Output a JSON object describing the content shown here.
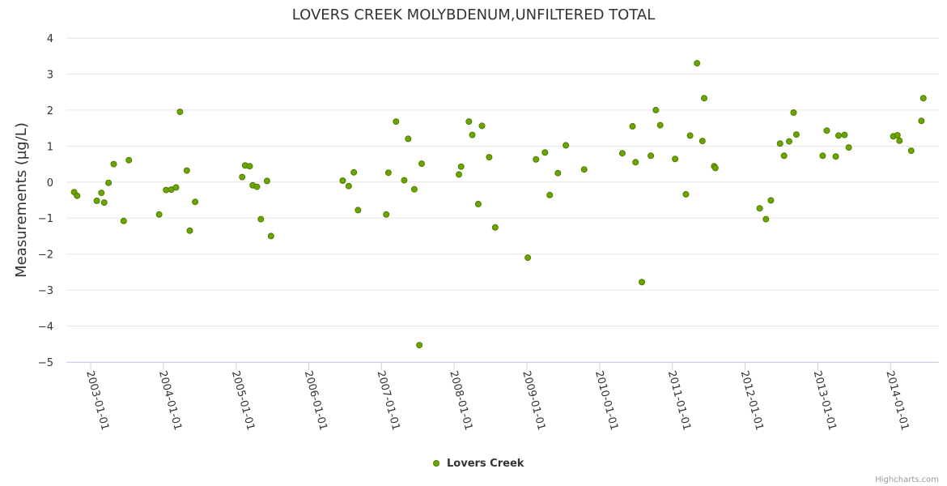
{
  "chart_data": {
    "type": "scatter",
    "title": "LOVERS CREEK MOLYBDENUM,UNFILTERED TOTAL",
    "xlabel": "",
    "ylabel": "Measurements (µg/L)",
    "x_axis_type": "datetime",
    "xlim": [
      "2002-09-01",
      "2014-09-01"
    ],
    "ylim": [
      -5,
      4
    ],
    "y_ticks": [
      4,
      3,
      2,
      1,
      0,
      -1,
      -2,
      -3,
      -4,
      -5
    ],
    "y_tick_labels": [
      "4",
      "3",
      "2",
      "1",
      "0",
      "−1",
      "−2",
      "−3",
      "−4",
      "−5"
    ],
    "x_ticks": [
      "2003-01-01",
      "2004-01-01",
      "2005-01-01",
      "2006-01-01",
      "2007-01-01",
      "2008-01-01",
      "2009-01-01",
      "2010-01-01",
      "2011-01-01",
      "2012-01-01",
      "2013-01-01",
      "2014-01-01"
    ],
    "grid": "horizontal",
    "legend_position": "bottom-center",
    "colors": {
      "marker_fill": "#6aa500",
      "marker_stroke": "#4f7d00",
      "grid": "#e6e6e6",
      "axis": "#ccd6eb"
    },
    "series": [
      {
        "name": "Lovers Creek",
        "points": [
          [
            "2002-10-10",
            -0.28
          ],
          [
            "2002-10-25",
            -0.38
          ],
          [
            "2003-02-01",
            -0.52
          ],
          [
            "2003-02-24",
            -0.3
          ],
          [
            "2003-03-10",
            -0.57
          ],
          [
            "2003-04-01",
            -0.02
          ],
          [
            "2003-04-27",
            0.5
          ],
          [
            "2003-06-16",
            -1.08
          ],
          [
            "2003-07-12",
            0.61
          ],
          [
            "2003-12-11",
            -0.9
          ],
          [
            "2004-01-15",
            -0.22
          ],
          [
            "2004-02-10",
            -0.21
          ],
          [
            "2004-03-05",
            -0.15
          ],
          [
            "2004-03-25",
            1.95
          ],
          [
            "2004-04-28",
            0.32
          ],
          [
            "2004-05-13",
            -1.35
          ],
          [
            "2004-06-09",
            -0.55
          ],
          [
            "2005-01-31",
            0.14
          ],
          [
            "2005-02-15",
            0.46
          ],
          [
            "2005-03-10",
            0.44
          ],
          [
            "2005-03-25",
            -0.09
          ],
          [
            "2005-04-15",
            -0.13
          ],
          [
            "2005-05-05",
            -1.03
          ],
          [
            "2005-06-05",
            0.03
          ],
          [
            "2005-06-25",
            -1.5
          ],
          [
            "2006-06-20",
            0.04
          ],
          [
            "2006-07-20",
            -0.11
          ],
          [
            "2006-08-15",
            0.27
          ],
          [
            "2006-09-05",
            -0.78
          ],
          [
            "2007-01-25",
            -0.9
          ],
          [
            "2007-02-05",
            0.26
          ],
          [
            "2007-03-15",
            1.68
          ],
          [
            "2007-04-25",
            0.05
          ],
          [
            "2007-05-15",
            1.2
          ],
          [
            "2007-06-15",
            -0.2
          ],
          [
            "2007-07-10",
            -4.53
          ],
          [
            "2007-07-22",
            0.51
          ],
          [
            "2008-01-25",
            0.21
          ],
          [
            "2008-02-05",
            0.43
          ],
          [
            "2008-03-15",
            1.68
          ],
          [
            "2008-04-01",
            1.31
          ],
          [
            "2008-05-01",
            -0.61
          ],
          [
            "2008-05-20",
            1.56
          ],
          [
            "2008-06-25",
            0.69
          ],
          [
            "2008-07-25",
            -1.26
          ],
          [
            "2009-01-05",
            -2.1
          ],
          [
            "2009-02-15",
            0.63
          ],
          [
            "2009-04-01",
            0.82
          ],
          [
            "2009-04-25",
            -0.36
          ],
          [
            "2009-06-05",
            0.25
          ],
          [
            "2009-07-15",
            1.02
          ],
          [
            "2009-10-15",
            0.35
          ],
          [
            "2010-04-25",
            0.8
          ],
          [
            "2010-06-15",
            1.55
          ],
          [
            "2010-06-30",
            0.55
          ],
          [
            "2010-08-01",
            -2.78
          ],
          [
            "2010-09-15",
            0.73
          ],
          [
            "2010-10-10",
            2.0
          ],
          [
            "2010-11-01",
            1.58
          ],
          [
            "2011-01-15",
            0.64
          ],
          [
            "2011-03-10",
            -0.34
          ],
          [
            "2011-03-31",
            1.29
          ],
          [
            "2011-05-05",
            3.3
          ],
          [
            "2011-06-01",
            1.14
          ],
          [
            "2011-06-10",
            2.33
          ],
          [
            "2011-07-30",
            0.44
          ],
          [
            "2011-08-05",
            0.39
          ],
          [
            "2012-03-15",
            -0.73
          ],
          [
            "2012-04-15",
            -1.03
          ],
          [
            "2012-05-10",
            -0.51
          ],
          [
            "2012-06-25",
            1.07
          ],
          [
            "2012-07-15",
            0.73
          ],
          [
            "2012-08-10",
            1.13
          ],
          [
            "2012-09-01",
            1.93
          ],
          [
            "2012-09-15",
            1.32
          ],
          [
            "2013-01-25",
            0.73
          ],
          [
            "2013-02-15",
            1.43
          ],
          [
            "2013-04-01",
            0.71
          ],
          [
            "2013-04-15",
            1.29
          ],
          [
            "2013-05-15",
            1.31
          ],
          [
            "2013-06-05",
            0.96
          ],
          [
            "2014-01-15",
            1.27
          ],
          [
            "2014-02-05",
            1.3
          ],
          [
            "2014-02-15",
            1.15
          ],
          [
            "2014-04-15",
            0.87
          ],
          [
            "2014-06-05",
            1.7
          ],
          [
            "2014-06-15",
            2.33
          ]
        ]
      }
    ]
  },
  "credits": "Highcharts.com"
}
